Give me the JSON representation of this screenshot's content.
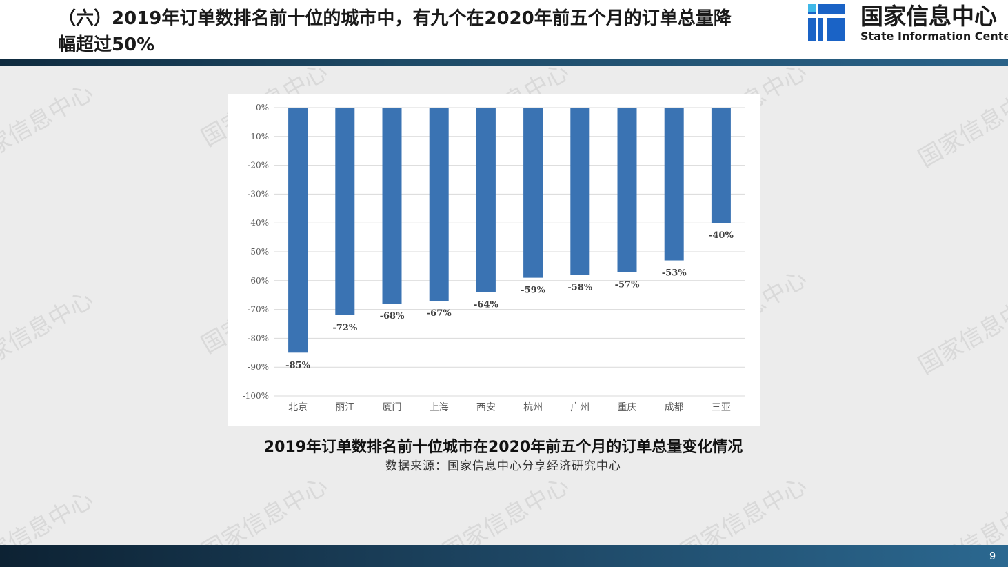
{
  "slide": {
    "title": "（六）2019年订单数排名前十位的城市中，有九个在2020年前五个月的订单总量降幅超过50%",
    "page_number": "9",
    "watermark": "国家信息中心"
  },
  "logo": {
    "cn": "国家信息中心",
    "en": "State Information Center"
  },
  "caption": {
    "title": "2019年订单数排名前十位城市在2020年前五个月的订单总量变化情况",
    "source": "数据来源：国家信息中心分享经济研究中心"
  },
  "colors": {
    "bar": "#3a73b3",
    "grid": "#d9d9d9",
    "header_bar": "#1e4a66"
  },
  "chart_data": {
    "type": "bar",
    "categories": [
      "北京",
      "丽江",
      "厦门",
      "上海",
      "西安",
      "杭州",
      "广州",
      "重庆",
      "成都",
      "三亚"
    ],
    "values": [
      -85,
      -72,
      -68,
      -67,
      -64,
      -59,
      -58,
      -57,
      -53,
      -40
    ],
    "data_labels": [
      "-85%",
      "-72%",
      "-68%",
      "-67%",
      "-64%",
      "-59%",
      "-58%",
      "-57%",
      "-53%",
      "-40%"
    ],
    "y_ticks": [
      "0%",
      "-10%",
      "-20%",
      "-30%",
      "-40%",
      "-50%",
      "-60%",
      "-70%",
      "-80%",
      "-90%",
      "-100%"
    ],
    "ylim": [
      -100,
      0
    ],
    "grid": true,
    "legend": "none",
    "title": "",
    "xlabel": "",
    "ylabel": ""
  }
}
